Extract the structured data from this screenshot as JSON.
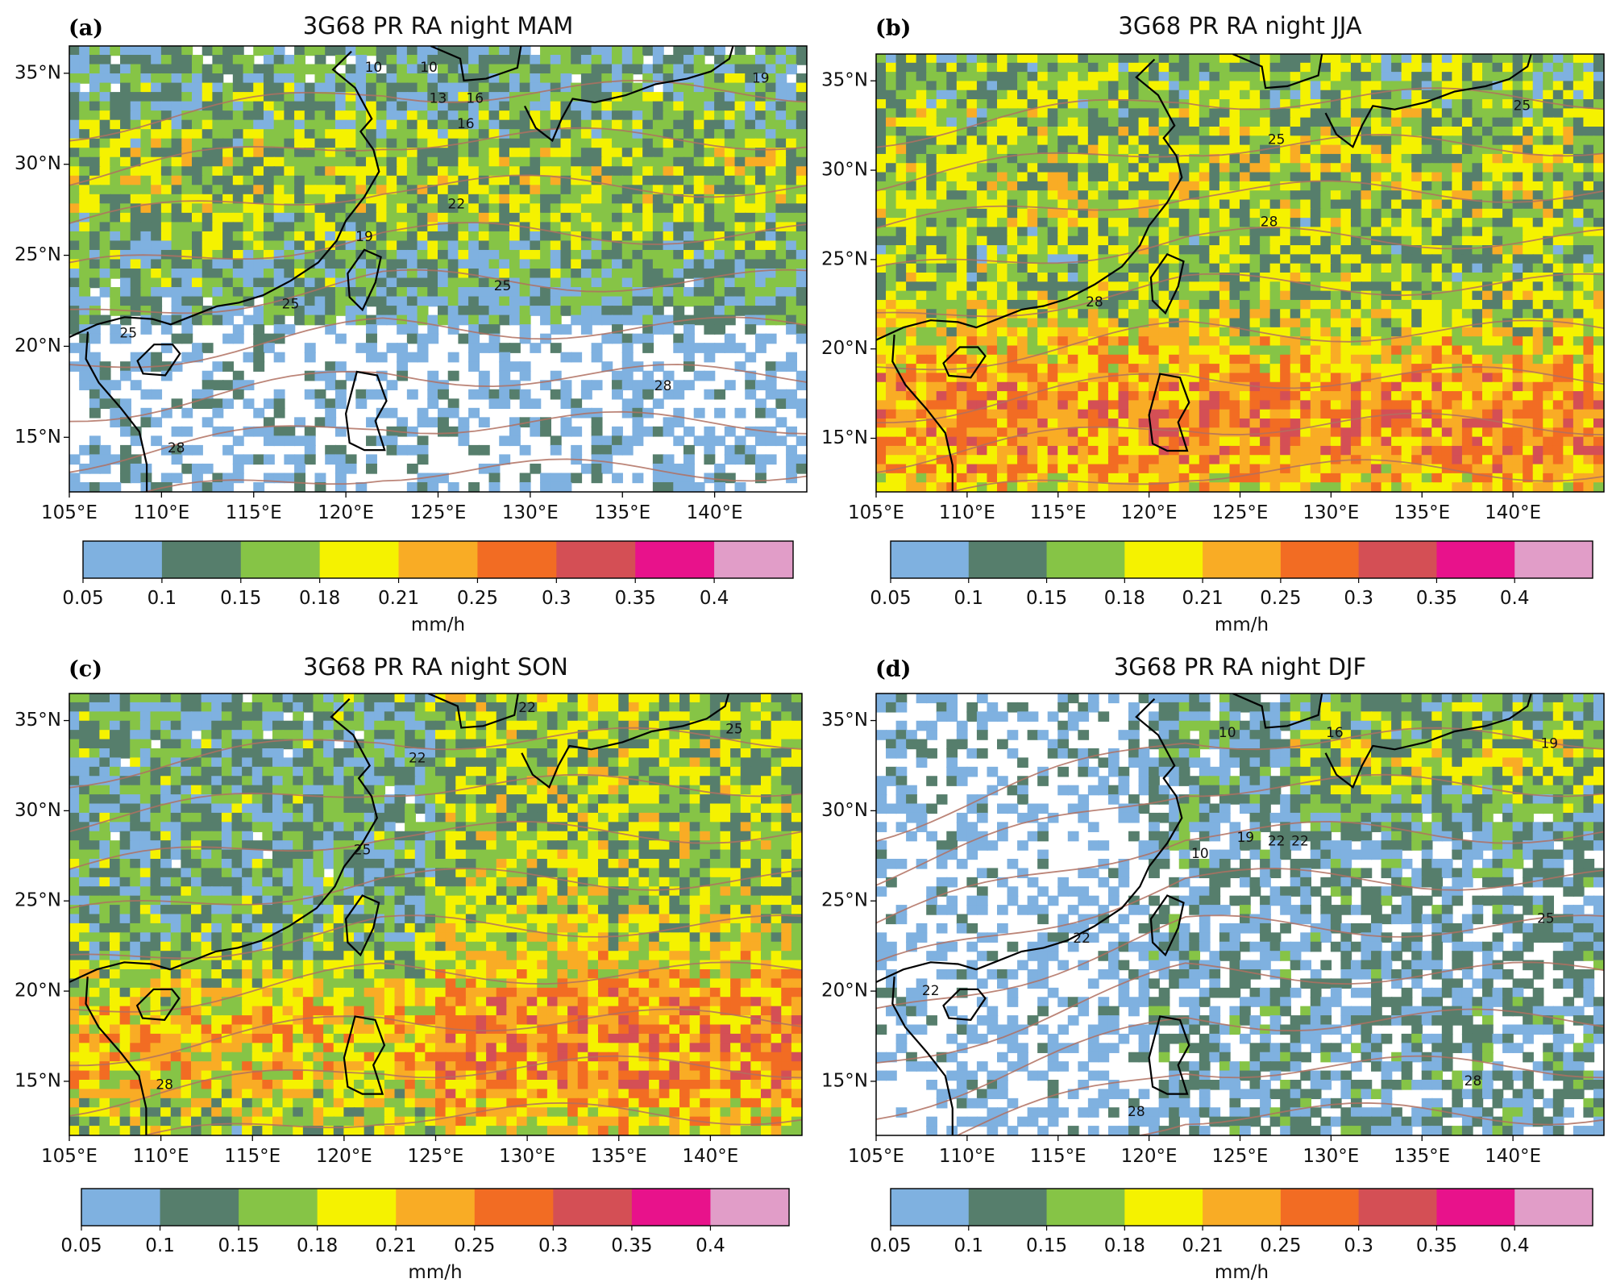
{
  "figure": {
    "type": "multi-panel-map",
    "panel_count": 4
  },
  "colormap": {
    "levels": [
      "0.05",
      "0.1",
      "0.15",
      "0.18",
      "0.21",
      "0.25",
      "0.3",
      "0.35",
      "0.4"
    ],
    "colors": [
      "#7fb1e0",
      "#567e6c",
      "#86c446",
      "#f5f200",
      "#f9ac25",
      "#f26c23",
      "#d44f55",
      "#e8128b",
      "#e19dc8"
    ],
    "unit": "mm/h",
    "contour_color": "#b07060",
    "coast_color": "#000000"
  },
  "chart_data": [
    {
      "type": "heatmap",
      "panel": "(a)",
      "title": "3G68 PR RA night MAM",
      "x_ticks": [
        "105°E",
        "110°E",
        "115°E",
        "120°E",
        "125°E",
        "130°E",
        "135°E",
        "140°E"
      ],
      "y_ticks": [
        "35°N",
        "30°N",
        "25°N",
        "20°N",
        "15°N"
      ],
      "xlim": [
        105,
        145
      ],
      "ylim": [
        12,
        36.5
      ],
      "colorbar_unit": "mm/h",
      "levels": [
        0.05,
        0.1,
        0.15,
        0.18,
        0.21,
        0.25,
        0.3,
        0.35,
        0.4
      ],
      "contour_labels": [
        {
          "text": "10",
          "lon": 121.5,
          "lat": 35.3
        },
        {
          "text": "10",
          "lon": 124.5,
          "lat": 35.3
        },
        {
          "text": "13",
          "lon": 125.0,
          "lat": 33.6
        },
        {
          "text": "16",
          "lon": 127.0,
          "lat": 33.6
        },
        {
          "text": "16",
          "lon": 126.5,
          "lat": 32.2
        },
        {
          "text": "19",
          "lon": 142.5,
          "lat": 34.7
        },
        {
          "text": "19",
          "lon": 121.0,
          "lat": 26.0
        },
        {
          "text": "22",
          "lon": 126.0,
          "lat": 27.8
        },
        {
          "text": "25",
          "lon": 128.5,
          "lat": 23.3
        },
        {
          "text": "25",
          "lon": 117.0,
          "lat": 22.3
        },
        {
          "text": "25",
          "lon": 108.2,
          "lat": 20.7
        },
        {
          "text": "28",
          "lon": 137.2,
          "lat": 17.8
        },
        {
          "text": "28",
          "lon": 110.8,
          "lat": 14.4
        }
      ]
    },
    {
      "type": "heatmap",
      "panel": "(b)",
      "title": "3G68 PR RA night JJA",
      "x_ticks": [
        "105°E",
        "110°E",
        "115°E",
        "120°E",
        "125°E",
        "130°E",
        "135°E",
        "140°E"
      ],
      "y_ticks": [
        "35°N",
        "30°N",
        "25°N",
        "20°N",
        "15°N"
      ],
      "xlim": [
        105,
        145
      ],
      "ylim": [
        12,
        36.5
      ],
      "colorbar_unit": "mm/h",
      "levels": [
        0.05,
        0.1,
        0.15,
        0.18,
        0.21,
        0.25,
        0.3,
        0.35,
        0.4
      ],
      "contour_labels": [
        {
          "text": "25",
          "lon": 140.5,
          "lat": 33.6
        },
        {
          "text": "25",
          "lon": 127.0,
          "lat": 31.7
        },
        {
          "text": "28",
          "lon": 126.6,
          "lat": 27.1
        },
        {
          "text": "28",
          "lon": 117.0,
          "lat": 22.6
        }
      ]
    },
    {
      "type": "heatmap",
      "panel": "(c)",
      "title": "3G68 PR RA night SON",
      "x_ticks": [
        "105°E",
        "110°E",
        "115°E",
        "120°E",
        "125°E",
        "130°E",
        "135°E",
        "140°E"
      ],
      "y_ticks": [
        "35°N",
        "30°N",
        "25°N",
        "20°N",
        "15°N"
      ],
      "xlim": [
        105,
        145
      ],
      "ylim": [
        12,
        36.5
      ],
      "colorbar_unit": "mm/h",
      "levels": [
        0.05,
        0.1,
        0.15,
        0.18,
        0.21,
        0.25,
        0.3,
        0.35,
        0.4
      ],
      "contour_labels": [
        {
          "text": "22",
          "lon": 130.0,
          "lat": 35.7
        },
        {
          "text": "22",
          "lon": 124.0,
          "lat": 32.9
        },
        {
          "text": "25",
          "lon": 141.3,
          "lat": 34.5
        },
        {
          "text": "25",
          "lon": 121.0,
          "lat": 27.8
        },
        {
          "text": "28",
          "lon": 110.2,
          "lat": 14.8
        }
      ]
    },
    {
      "type": "heatmap",
      "panel": "(d)",
      "title": "3G68 PR RA night DJF",
      "x_ticks": [
        "105°E",
        "110°E",
        "115°E",
        "120°E",
        "125°E",
        "130°E",
        "135°E",
        "140°E"
      ],
      "y_ticks": [
        "35°N",
        "30°N",
        "25°N",
        "20°N",
        "15°N"
      ],
      "xlim": [
        105,
        145
      ],
      "ylim": [
        12,
        36.5
      ],
      "colorbar_unit": "mm/h",
      "levels": [
        0.05,
        0.1,
        0.15,
        0.18,
        0.21,
        0.25,
        0.3,
        0.35,
        0.4
      ],
      "contour_labels": [
        {
          "text": "10",
          "lon": 124.3,
          "lat": 34.3
        },
        {
          "text": "16",
          "lon": 130.2,
          "lat": 34.3
        },
        {
          "text": "19",
          "lon": 142.0,
          "lat": 33.7
        },
        {
          "text": "19",
          "lon": 125.3,
          "lat": 28.5
        },
        {
          "text": "10",
          "lon": 122.8,
          "lat": 27.6
        },
        {
          "text": "22",
          "lon": 127.0,
          "lat": 28.3
        },
        {
          "text": "22",
          "lon": 128.3,
          "lat": 28.3
        },
        {
          "text": "25",
          "lon": 141.8,
          "lat": 24.0
        },
        {
          "text": "22",
          "lon": 116.3,
          "lat": 22.9
        },
        {
          "text": "22",
          "lon": 108.0,
          "lat": 20.0
        },
        {
          "text": "28",
          "lon": 137.8,
          "lat": 15.0
        },
        {
          "text": "28",
          "lon": 119.3,
          "lat": 13.3
        }
      ]
    }
  ]
}
